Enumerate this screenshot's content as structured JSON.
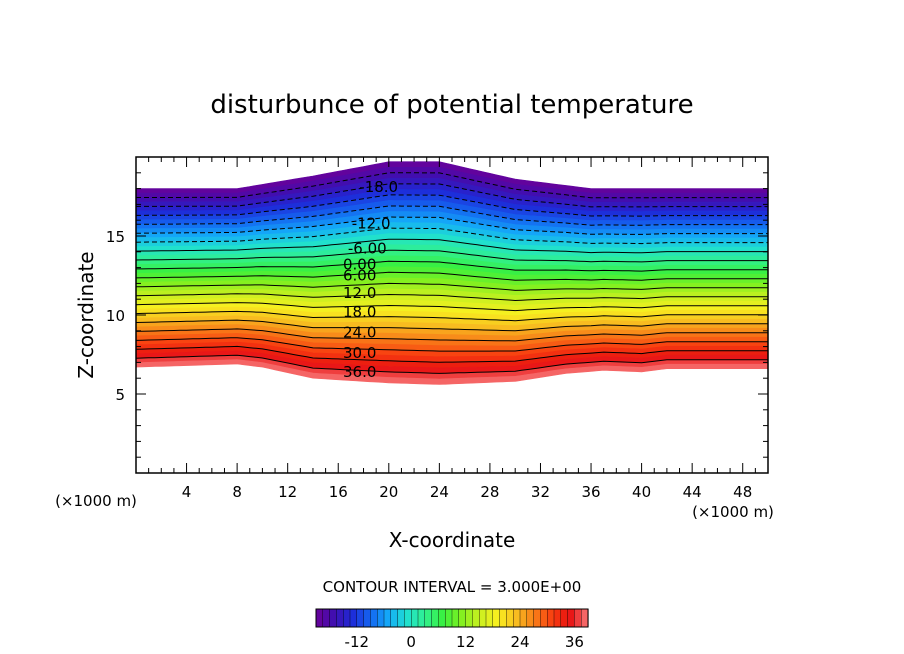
{
  "chart_data": {
    "type": "contour",
    "title": "disturbunce of potential temperature",
    "xlabel": "X-coordinate",
    "ylabel": "Z-coordinate",
    "x_unit_label_left": "(×1000 m)",
    "x_unit_label_right": "(×1000 m)",
    "xlim": [
      0,
      50
    ],
    "ylim": [
      0,
      20
    ],
    "x_ticks": [
      4,
      8,
      12,
      16,
      20,
      24,
      28,
      32,
      36,
      40,
      44,
      48
    ],
    "x_tick_labels": [
      "4",
      "8",
      "12",
      "16",
      "20",
      "24",
      "28",
      "32",
      "36",
      "40",
      "44",
      "48"
    ],
    "y_ticks": [
      5,
      10,
      15
    ],
    "y_tick_labels": [
      "5",
      "10",
      "15"
    ],
    "contour_interval_text": "CONTOUR INTERVAL = 3.000E+00",
    "contour_interval": 3,
    "value_range": [
      -21,
      39
    ],
    "contour_labels": [
      {
        "text": "-18.0",
        "value": -18,
        "x": 19.2,
        "z": 18.1
      },
      {
        "text": "-12.0",
        "value": -12,
        "x": 18.6,
        "z": 15.8
      },
      {
        "text": "-6.00",
        "value": -6,
        "x": 18.3,
        "z": 14.2
      },
      {
        "text": "0.00",
        "value": 0,
        "x": 17.7,
        "z": 13.2
      },
      {
        "text": "6.00",
        "value": 6,
        "x": 17.7,
        "z": 12.5
      },
      {
        "text": "12.0",
        "value": 12,
        "x": 17.7,
        "z": 11.4
      },
      {
        "text": "18.0",
        "value": 18,
        "x": 17.7,
        "z": 10.2
      },
      {
        "text": "24.0",
        "value": 24,
        "x": 17.7,
        "z": 8.9
      },
      {
        "text": "30.0",
        "value": 30,
        "x": 17.7,
        "z": 7.6
      },
      {
        "text": "36.0",
        "value": 36,
        "x": 17.7,
        "z": 6.4
      }
    ],
    "field_description": {
      "bottom_z_at_x": [
        [
          0,
          6.7
        ],
        [
          8,
          6.9
        ],
        [
          10,
          6.7
        ],
        [
          14,
          6.0
        ],
        [
          20,
          5.7
        ],
        [
          24,
          5.6
        ],
        [
          30,
          5.8
        ],
        [
          34,
          6.3
        ],
        [
          37,
          6.5
        ],
        [
          40,
          6.4
        ],
        [
          42,
          6.6
        ],
        [
          50,
          6.6
        ]
      ],
      "top_z_at_x": [
        [
          0,
          18.0
        ],
        [
          8,
          18.0
        ],
        [
          14,
          18.8
        ],
        [
          20,
          19.7
        ],
        [
          24,
          19.7
        ],
        [
          30,
          18.6
        ],
        [
          36,
          18.0
        ],
        [
          50,
          18.0
        ]
      ]
    },
    "colorbar": {
      "tick_values": [
        -12,
        0,
        12,
        24,
        36
      ],
      "tick_labels": [
        "-12",
        "0",
        "12",
        "24",
        "36"
      ],
      "min": -21,
      "max": 39,
      "colors": [
        "#6a0098",
        "#3f0fb0",
        "#1e2bd8",
        "#1466f0",
        "#14aaf8",
        "#20e0d0",
        "#30f090",
        "#38f040",
        "#80f020",
        "#c8f020",
        "#f8f020",
        "#f8c020",
        "#f88018",
        "#f84010",
        "#e81010",
        "#f87878"
      ]
    }
  }
}
